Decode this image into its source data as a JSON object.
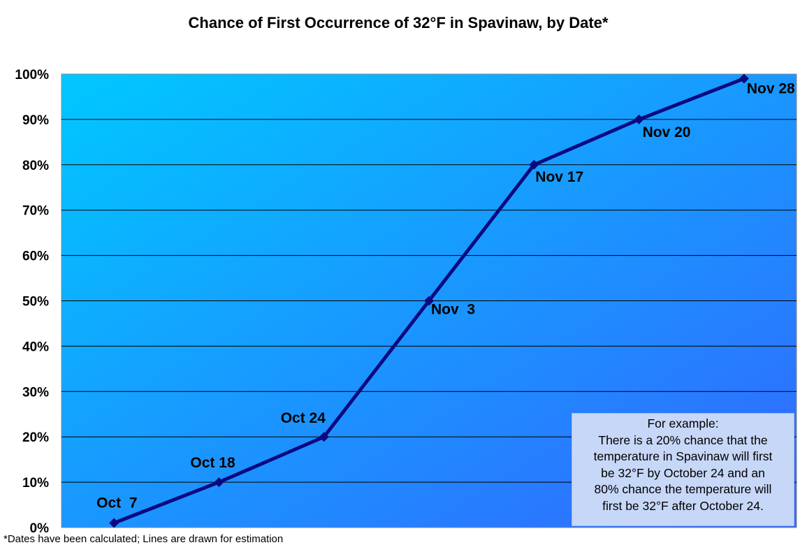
{
  "chart_data": {
    "type": "line",
    "title": "Chance of First Occurrence of 32°F in Spavinaw, by Date*",
    "xlabel": "",
    "ylabel": "",
    "ylim": [
      0,
      100
    ],
    "y_ticks": [
      "0%",
      "10%",
      "20%",
      "30%",
      "40%",
      "50%",
      "60%",
      "70%",
      "80%",
      "90%",
      "100%"
    ],
    "grid": true,
    "background_gradient": [
      "#00c8ff",
      "#3366ff"
    ],
    "line_color": "#0a0a80",
    "series": [
      {
        "points": [
          {
            "label": "Oct  7",
            "y": 1
          },
          {
            "label": "Oct 18",
            "y": 10
          },
          {
            "label": "Oct 24",
            "y": 20
          },
          {
            "label": "Nov  3",
            "y": 50
          },
          {
            "label": "Nov 17",
            "y": 80
          },
          {
            "label": "Nov 20",
            "y": 90
          },
          {
            "label": "Nov 28",
            "y": 99
          }
        ]
      }
    ]
  },
  "example_box": {
    "lines": [
      "For example:",
      "There is a 20% chance that the",
      "temperature in Spavinaw will first",
      "be 32°F by October 24 and an",
      "80% chance the temperature will",
      "first be 32°F after October 24."
    ]
  },
  "footnote": "*Dates have been calculated; Lines are drawn for estimation"
}
